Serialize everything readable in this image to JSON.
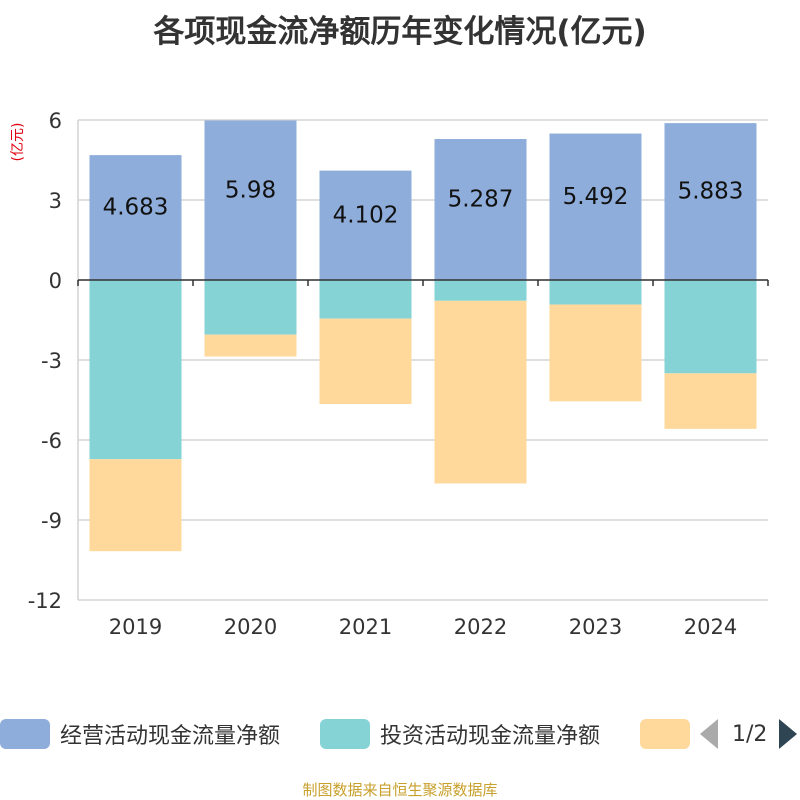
{
  "title": "各项现金流净额历年变化情况(亿元)",
  "unit_label": "(亿元)",
  "source": "制图数据来自恒生聚源数据库",
  "legend": {
    "items": [
      {
        "label": "经营活动现金流量净额",
        "color": "#8eaddb"
      },
      {
        "label": "投资活动现金流量净额",
        "color": "#86d3d6"
      },
      {
        "label": "",
        "color": "#fed99b"
      }
    ],
    "page_indicator": "1/2"
  },
  "chart_data": {
    "type": "bar",
    "stacked": true,
    "categories": [
      "2019",
      "2020",
      "2021",
      "2022",
      "2023",
      "2024"
    ],
    "ylim": [
      -12,
      6
    ],
    "yticks": [
      6,
      3,
      0,
      -3,
      -6,
      -9,
      -12
    ],
    "ytick_labels": [
      "6",
      "3",
      "0",
      "-3",
      "-6",
      "-9",
      "-12"
    ],
    "grid": true,
    "legend_position": "bottom",
    "series": [
      {
        "name": "经营活动现金流量净额",
        "color": "#8eaddb",
        "values": [
          4.683,
          5.98,
          4.102,
          5.287,
          5.492,
          5.883
        ],
        "labels": [
          "4.683",
          "5.98",
          "4.102",
          "5.287",
          "5.492",
          "5.883"
        ]
      },
      {
        "name": "投资活动现金流量净额",
        "color": "#86d3d6",
        "values": [
          -6.72,
          -2.05,
          -1.45,
          -0.78,
          -0.92,
          -3.5
        ]
      },
      {
        "color": "#fed99b",
        "values": [
          -3.45,
          -0.82,
          -3.2,
          -6.85,
          -3.63,
          -2.08
        ]
      }
    ]
  }
}
